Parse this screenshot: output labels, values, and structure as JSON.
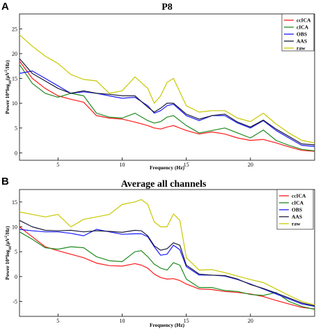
{
  "panels": [
    {
      "letter": "A",
      "title": "P8",
      "xlabel": "Frequency (Hz)",
      "ylabel": "Power 10*log10(µV²/Hz)",
      "ylabel_parts": {
        "pre": "Power 10*log",
        "sub": "10",
        "mid": "(µV",
        "sup": "2",
        "post": "/Hz)"
      },
      "xticks": [
        5,
        10,
        15,
        20
      ],
      "yticks": [
        0,
        5,
        10,
        15,
        20,
        25
      ],
      "legend": [
        "ccICA",
        "cICA",
        "OBS",
        "AAS",
        "raw"
      ]
    },
    {
      "letter": "B",
      "title": "Average all channels",
      "xlabel": "Frequency (Hz)",
      "ylabel": "Power 10*log10(µV²/Hz)",
      "ylabel_parts": {
        "pre": "Power 10*log",
        "sub": "10",
        "mid": "(µV",
        "sup": "2",
        "post": "/Hz)"
      },
      "xticks": [
        5,
        10,
        15,
        20
      ],
      "yticks": [
        -5,
        0,
        5,
        10,
        15
      ],
      "legend": [
        "ccICA",
        "cICA",
        "OBS",
        "AAS",
        "raw"
      ]
    }
  ],
  "colors": {
    "ccICA": "#ff1a1a",
    "cICA": "#1f8a1f",
    "OBS": "#1a1aff",
    "AAS": "#1a1a3a",
    "raw": "#c8c800"
  },
  "chart_data": [
    {
      "type": "line",
      "title": "P8",
      "xlabel": "Frequency (Hz)",
      "ylabel": "Power 10*log10(µV²/Hz)",
      "xlim": [
        2,
        25
      ],
      "ylim": [
        -1.5,
        28
      ],
      "legend_position": "top-right",
      "grid": false,
      "x": [
        2,
        3,
        4,
        5,
        6,
        7,
        8,
        9,
        10,
        11,
        12,
        12.5,
        13,
        13.5,
        14,
        15,
        16,
        17,
        18,
        19,
        20,
        21,
        22,
        23,
        24,
        25
      ],
      "series": [
        {
          "name": "ccICA",
          "values": [
            18.5,
            15,
            13,
            11.5,
            10.8,
            10.2,
            7.5,
            7,
            6.8,
            6.2,
            5.5,
            5,
            4.8,
            5.2,
            5.5,
            4.5,
            3.8,
            4.2,
            3.8,
            3,
            2.5,
            2.7,
            2.0,
            1.2,
            0.5,
            0.3
          ]
        },
        {
          "name": "cICA",
          "values": [
            17.8,
            14,
            12,
            11.2,
            12,
            11.5,
            8,
            7.2,
            7,
            8,
            6.5,
            6,
            6.3,
            7.2,
            7.5,
            5.5,
            4,
            4.5,
            5,
            4,
            3,
            4.6,
            2.5,
            1.5,
            0.7,
            0.4
          ]
        },
        {
          "name": "OBS",
          "values": [
            16,
            16.5,
            15,
            13.5,
            12,
            12.3,
            12,
            11.5,
            11,
            11.2,
            9.5,
            8,
            8.5,
            9.5,
            9.8,
            7.5,
            6.5,
            7.5,
            7.5,
            6,
            5,
            6.5,
            4.5,
            3,
            1.5,
            1.3
          ]
        },
        {
          "name": "AAS",
          "values": [
            19,
            16,
            14.5,
            13,
            12,
            12.5,
            12,
            11.8,
            11.5,
            11.5,
            9.2,
            8.2,
            9,
            10,
            10,
            7.8,
            6.8,
            7.5,
            7.8,
            6.2,
            5.2,
            6.6,
            4.8,
            3.3,
            1.8,
            1.6
          ]
        },
        {
          "name": "raw",
          "values": [
            23.8,
            21.5,
            19.5,
            18,
            15.8,
            14.8,
            14.5,
            12,
            12.5,
            15.3,
            13,
            10,
            11.5,
            14.2,
            15,
            9.5,
            8.2,
            8.5,
            8.5,
            7,
            6.3,
            8,
            5.8,
            4,
            2.5,
            2
          ]
        }
      ]
    },
    {
      "type": "line",
      "title": "Average all channels",
      "xlabel": "Frequency (Hz)",
      "ylabel": "Power 10*log10(µV²/Hz)",
      "xlim": [
        2,
        25
      ],
      "ylim": [
        -8,
        17.5
      ],
      "legend_position": "top-right",
      "grid": false,
      "x": [
        2,
        3,
        4,
        5,
        6,
        7,
        8,
        9,
        10,
        11,
        11.5,
        12,
        12.5,
        13,
        13.5,
        14,
        14.5,
        15,
        16,
        17,
        18,
        19,
        20,
        21,
        22,
        23,
        24,
        25
      ],
      "series": [
        {
          "name": "ccICA",
          "values": [
            10,
            8,
            6,
            5.2,
            4.5,
            3.8,
            2.7,
            2.2,
            2.1,
            2.6,
            2.3,
            1.7,
            0.5,
            -0.2,
            -0.5,
            -0.4,
            -0.8,
            -1.5,
            -2.5,
            -2.6,
            -3,
            -3.2,
            -3.5,
            -4,
            -4.8,
            -5.5,
            -6.2,
            -6.5
          ]
        },
        {
          "name": "cICA",
          "values": [
            9,
            7.5,
            5.8,
            5.5,
            6,
            5.8,
            4,
            3.2,
            3,
            5,
            5.2,
            4,
            2.5,
            1.7,
            1.3,
            2.8,
            2.3,
            -0.5,
            -2.2,
            -2.2,
            -2.8,
            -3,
            -3.6,
            -3.8,
            -3.2,
            -5,
            -6,
            -6.6
          ]
        },
        {
          "name": "OBS",
          "values": [
            9.5,
            9.2,
            9,
            9,
            8.7,
            8.2,
            9.5,
            9,
            8.5,
            8.6,
            8.6,
            8,
            6,
            4.3,
            4.5,
            6.3,
            5.4,
            2,
            0.3,
            0.3,
            0.1,
            -0.6,
            -1.5,
            -2.5,
            -3.5,
            -4.5,
            -5.5,
            -6
          ]
        },
        {
          "name": "AAS",
          "values": [
            11.3,
            10,
            9.3,
            9.2,
            9.3,
            9,
            9.2,
            9.1,
            8.9,
            9.3,
            9.2,
            8.2,
            6.2,
            5.3,
            5.6,
            6.8,
            6.3,
            2.3,
            0.5,
            0.3,
            0.2,
            -0.5,
            -1.6,
            -2.4,
            -3.3,
            -4.3,
            -5.3,
            -5.9
          ]
        },
        {
          "name": "raw",
          "values": [
            13,
            12.5,
            12,
            12.5,
            10,
            11.5,
            12,
            12.5,
            14.5,
            15,
            15.5,
            14.5,
            11,
            10,
            10,
            12.6,
            11.3,
            3.8,
            1.3,
            1.4,
            0.8,
            0.1,
            -0.6,
            -1.2,
            -2.5,
            -3.8,
            -5,
            -5.7
          ]
        }
      ]
    }
  ]
}
